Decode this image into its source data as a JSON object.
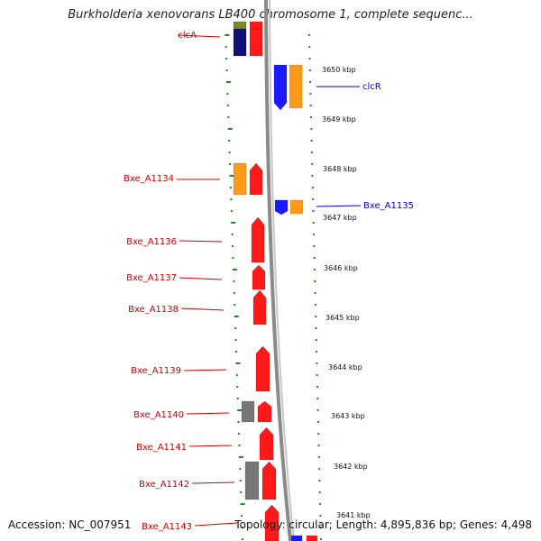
{
  "title": "Burkholderia xenovorans LB400 chromosome 1, complete sequenc...",
  "footer": {
    "accession": "Accession: NC_007951",
    "summary": "Topology: circular; Length: 4,895,836 bp; Genes: 4,498"
  },
  "colors": {
    "red": "#ff1a1a",
    "orange": "#ff9a1a",
    "blue": "#1a1aff",
    "navy": "#10107a",
    "gray": "#777777",
    "olive": "#7a8a2a",
    "track_dots": "#1f8a1f",
    "backbone": "#8a8a8a",
    "label_red": "#cc0000",
    "label_blue": "#0000cc"
  },
  "ticks": [
    "3650 kbp",
    "3649 kbp",
    "3648 kbp",
    "3647 kbp",
    "3646 kbp",
    "3645 kbp",
    "3644 kbp",
    "3643 kbp",
    "3642 kbp",
    "3641 kbp"
  ],
  "genes_left": [
    "clcA",
    "Bxe_A1134",
    "Bxe_A1136",
    "Bxe_A1137",
    "Bxe_A1138",
    "Bxe_A1139",
    "Bxe_A1140",
    "Bxe_A1141",
    "Bxe_A1142",
    "Bxe_A1143"
  ],
  "genes_right": [
    "clcR",
    "Bxe_A1135"
  ]
}
